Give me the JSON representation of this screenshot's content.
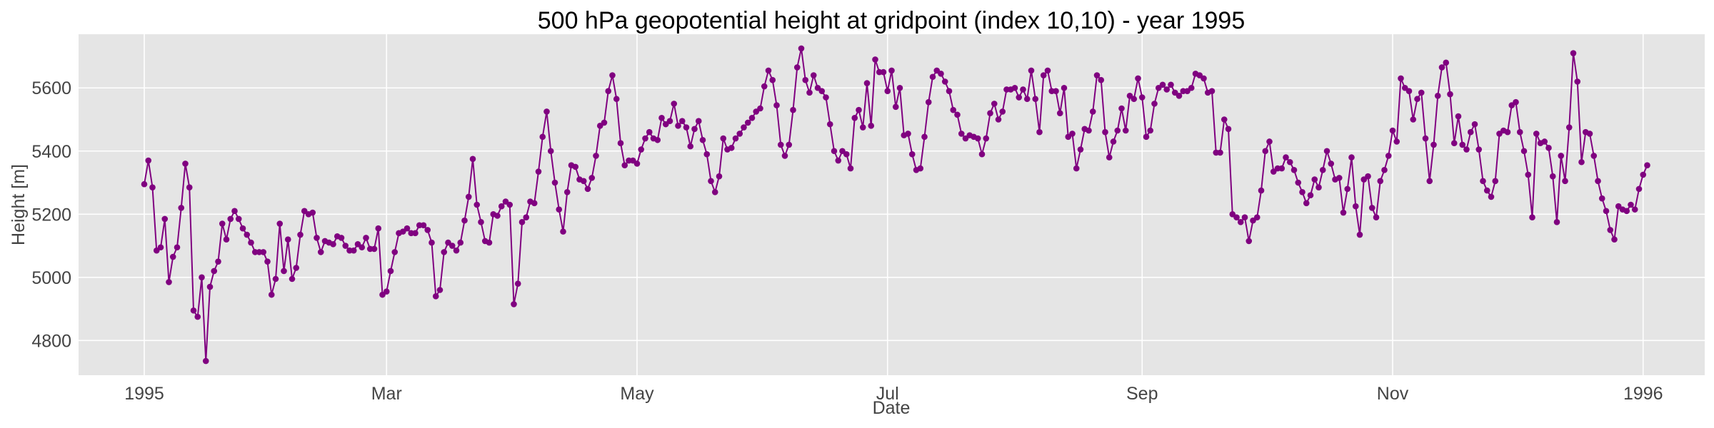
{
  "chart_data": {
    "type": "line",
    "title": "500 hPa geopotential height at gridpoint (index 10,10) - year 1995",
    "xlabel": "Date",
    "ylabel": "Height [m]",
    "xlim": [
      "1994-12-16",
      "1996-01-16"
    ],
    "ylim": [
      4690,
      5770
    ],
    "xticks": [
      {
        "date": "1995-01-01",
        "label": "1995"
      },
      {
        "date": "1995-03-01",
        "label": "Mar"
      },
      {
        "date": "1995-05-01",
        "label": "May"
      },
      {
        "date": "1995-07-01",
        "label": "Jul"
      },
      {
        "date": "1995-09-01",
        "label": "Sep"
      },
      {
        "date": "1995-11-01",
        "label": "Nov"
      },
      {
        "date": "1996-01-01",
        "label": "1996"
      }
    ],
    "yticks": [
      4800,
      5000,
      5200,
      5400,
      5600
    ],
    "grid": true,
    "line_color": "#800080",
    "marker": "circle",
    "background": "#e5e5e5",
    "series": [
      {
        "start_date": "1995-01-01",
        "step_days": 1,
        "values": [
          5295,
          5370,
          5285,
          5085,
          5095,
          5185,
          4985,
          5065,
          5095,
          5220,
          5360,
          5285,
          4895,
          4875,
          5000,
          4735,
          4970,
          5020,
          5050,
          5170,
          5120,
          5185,
          5210,
          5185,
          5155,
          5135,
          5110,
          5080,
          5080,
          5080,
          5050,
          4945,
          4995,
          5170,
          5020,
          5120,
          4995,
          5030,
          5135,
          5210,
          5200,
          5205,
          5125,
          5080,
          5115,
          5110,
          5105,
          5130,
          5125,
          5100,
          5085,
          5085,
          5105,
          5095,
          5125,
          5090,
          5090,
          5155,
          4945,
          4955,
          5020,
          5080,
          5140,
          5145,
          5155,
          5140,
          5140,
          5165,
          5165,
          5150,
          5110,
          4940,
          4960,
          5080,
          5110,
          5100,
          5085,
          5110,
          5180,
          5255,
          5375,
          5230,
          5175,
          5115,
          5110,
          5200,
          5195,
          5225,
          5240,
          5230,
          4915,
          4980,
          5175,
          5190,
          5240,
          5235,
          5335,
          5445,
          5525,
          5400,
          5300,
          5215,
          5145,
          5270,
          5355,
          5350,
          5310,
          5305,
          5280,
          5315,
          5385,
          5480,
          5490,
          5590,
          5640,
          5565,
          5425,
          5355,
          5370,
          5370,
          5360,
          5405,
          5440,
          5460,
          5440,
          5435,
          5505,
          5485,
          5495,
          5550,
          5480,
          5495,
          5475,
          5415,
          5470,
          5495,
          5435,
          5390,
          5305,
          5270,
          5320,
          5440,
          5405,
          5410,
          5440,
          5455,
          5475,
          5490,
          5505,
          5525,
          5535,
          5605,
          5655,
          5625,
          5545,
          5420,
          5385,
          5420,
          5530,
          5665,
          5725,
          5625,
          5585,
          5640,
          5600,
          5590,
          5570,
          5485,
          5400,
          5370,
          5400,
          5390,
          5345,
          5505,
          5530,
          5475,
          5615,
          5480,
          5690,
          5650,
          5650,
          5590,
          5655,
          5540,
          5600,
          5450,
          5455,
          5390,
          5340,
          5345,
          5445,
          5555,
          5635,
          5655,
          5645,
          5620,
          5590,
          5530,
          5515,
          5455,
          5440,
          5450,
          5445,
          5440,
          5390,
          5440,
          5520,
          5550,
          5500,
          5525,
          5595,
          5595,
          5600,
          5570,
          5595,
          5565,
          5655,
          5565,
          5460,
          5640,
          5655,
          5590,
          5590,
          5520,
          5600,
          5445,
          5455,
          5345,
          5405,
          5470,
          5465,
          5525,
          5640,
          5625,
          5460,
          5380,
          5430,
          5465,
          5535,
          5465,
          5575,
          5565,
          5630,
          5570,
          5445,
          5465,
          5550,
          5600,
          5610,
          5595,
          5610,
          5585,
          5575,
          5590,
          5590,
          5600,
          5645,
          5640,
          5630,
          5585,
          5590,
          5395,
          5395,
          5500,
          5470,
          5200,
          5190,
          5175,
          5190,
          5115,
          5180,
          5190,
          5275,
          5400,
          5430,
          5335,
          5345,
          5345,
          5380,
          5365,
          5340,
          5300,
          5270,
          5235,
          5260,
          5310,
          5285,
          5340,
          5400,
          5360,
          5310,
          5315,
          5205,
          5280,
          5380,
          5225,
          5135,
          5310,
          5320,
          5220,
          5190,
          5305,
          5340,
          5385,
          5465,
          5430,
          5630,
          5600,
          5590,
          5500,
          5565,
          5585,
          5440,
          5305,
          5420,
          5575,
          5665,
          5680,
          5580,
          5425,
          5510,
          5420,
          5405,
          5460,
          5485,
          5405,
          5305,
          5275,
          5255,
          5305,
          5455,
          5465,
          5460,
          5545,
          5555,
          5460,
          5400,
          5325,
          5190,
          5455,
          5425,
          5430,
          5410,
          5320,
          5175,
          5385,
          5305,
          5475,
          5710,
          5620,
          5365,
          5460,
          5455,
          5385,
          5305,
          5250,
          5210,
          5150,
          5120,
          5225,
          5215,
          5210,
          5230,
          5215,
          5280,
          5325,
          5355
        ]
      }
    ]
  }
}
